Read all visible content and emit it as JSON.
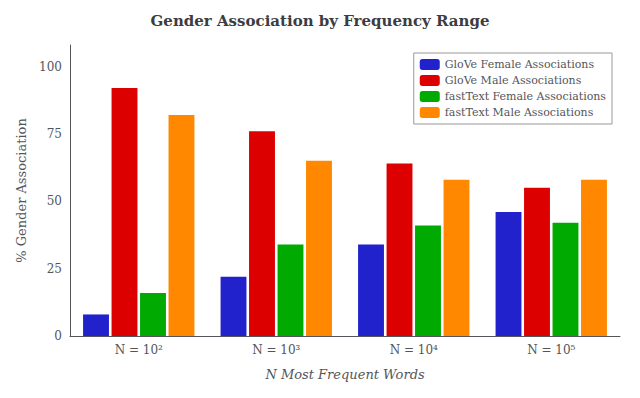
{
  "chart_data": {
    "type": "bar",
    "title": "Gender Association by Frequency Range",
    "xlabel": "N Most Frequent Words",
    "ylabel": "% Gender Association",
    "categories": [
      "N = 10²",
      "N = 10³",
      "N = 10⁴",
      "N = 10⁵"
    ],
    "series": [
      {
        "name": "GloVe Female Associations",
        "color": "#2222cc",
        "values": [
          8,
          22,
          34,
          46
        ]
      },
      {
        "name": "GloVe Male Associations",
        "color": "#dd0000",
        "values": [
          92,
          76,
          64,
          55
        ]
      },
      {
        "name": "fastText Female Associations",
        "color": "#00aa00",
        "values": [
          16,
          34,
          41,
          42
        ]
      },
      {
        "name": "fastText Male Associations",
        "color": "#ff8800",
        "values": [
          82,
          65,
          58,
          58
        ]
      }
    ],
    "ylim": [
      0,
      108
    ],
    "yticks": [
      0,
      25,
      50,
      75,
      100
    ],
    "grid": false,
    "legend": "upper right"
  }
}
